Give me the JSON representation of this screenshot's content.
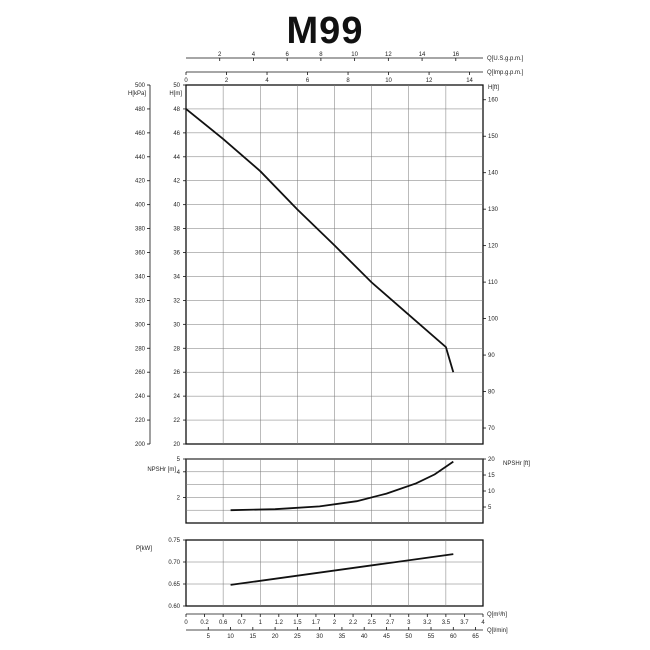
{
  "title": "M99",
  "chart_data": [
    {
      "type": "line",
      "name": "head-curve",
      "x": [
        0,
        0.5,
        1,
        1.5,
        2,
        2.5,
        3,
        3.5,
        3.6
      ],
      "y": [
        48,
        45.5,
        42.8,
        39.6,
        36.6,
        33.5,
        30.8,
        28.1,
        26
      ],
      "ylabel_left_outer": "H[kPa]",
      "ylabel_left": "H[m]",
      "ylabel_right": "H[ft]",
      "ylim": [
        20,
        50
      ],
      "xlim": [
        0,
        4
      ],
      "yticks_m": [
        "20",
        "22",
        "24",
        "26",
        "28",
        "30",
        "32",
        "34",
        "36",
        "38",
        "40",
        "42",
        "44",
        "46",
        "48",
        "50"
      ],
      "yticks_kpa": [
        "200",
        "220",
        "240",
        "260",
        "280",
        "300",
        "320",
        "340",
        "360",
        "380",
        "400",
        "420",
        "440",
        "460",
        "480",
        "500"
      ],
      "yticks_ft": [
        "70",
        "80",
        "90",
        "100",
        "110",
        "120",
        "130",
        "140",
        "150",
        "160"
      ],
      "xlabel_top1": "Q[U.S.g.p.m.]",
      "xticks_top1": [
        "2",
        "4",
        "6",
        "8",
        "10",
        "12",
        "14",
        "16"
      ],
      "xlabel_top2": "Q[Imp.g.p.m.]",
      "xticks_top2": [
        "0",
        "2",
        "4",
        "6",
        "8",
        "10",
        "12",
        "14"
      ]
    },
    {
      "type": "line",
      "name": "npsh-curve",
      "x": [
        0.6,
        1.2,
        1.8,
        2.3,
        2.7,
        3.1,
        3.35,
        3.6
      ],
      "y": [
        1.0,
        1.08,
        1.3,
        1.7,
        2.3,
        3.1,
        3.8,
        4.8
      ],
      "ylabel_left": "NPSHr [m]",
      "ylabel_right": "NPSHr [ft]",
      "ylim": [
        0,
        5
      ],
      "yticks_m": [
        "2",
        "4",
        "5"
      ],
      "yticks_ft": [
        "5",
        "10",
        "15",
        "20"
      ]
    },
    {
      "type": "line",
      "name": "power-curve",
      "x": [
        0.6,
        3.6
      ],
      "y": [
        0.648,
        0.718
      ],
      "ylabel": "P[kW]",
      "ylim": [
        0.6,
        0.75
      ],
      "yticks": [
        "0.60",
        "0.65",
        "0.70",
        "0.75"
      ],
      "xlabel_m3h": "Q[m³/h]",
      "xticks_m3h": [
        "0",
        "0.2",
        "0.6",
        "0.7",
        "1",
        "1.2",
        "1.5",
        "1.7",
        "2",
        "2.2",
        "2.5",
        "2.7",
        "3",
        "3.2",
        "3.5",
        "3.7",
        "4"
      ],
      "xlabel_lmin": "Q[l/min]",
      "xticks_lmin": [
        "5",
        "10",
        "15",
        "20",
        "25",
        "30",
        "35",
        "40",
        "45",
        "50",
        "55",
        "60",
        "65"
      ]
    }
  ]
}
